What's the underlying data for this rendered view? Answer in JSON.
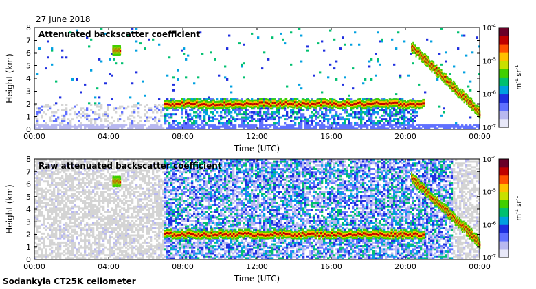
{
  "date_label": "27 June 2018",
  "footer": "Sodankyla CT25K ceilometer",
  "colors": {
    "colormap": [
      "#e8e8f8",
      "#b8b8f0",
      "#6070ff",
      "#1f2fe0",
      "#00a0e0",
      "#00c070",
      "#40d000",
      "#c8e000",
      "#ffc000",
      "#ff5000",
      "#c00000",
      "#6a0028"
    ],
    "background_noise": "#d4d4d4",
    "axis": "#000000"
  },
  "chart_data": [
    {
      "type": "heatmap",
      "title": "Attenuated backscatter coefficient",
      "xlabel": "Time (UTC)",
      "ylabel": "Height (km)",
      "x_ticks": [
        "00:00",
        "04:00",
        "08:00",
        "12:00",
        "16:00",
        "20:00",
        "00:00"
      ],
      "y_ticks": [
        "0",
        "1",
        "2",
        "3",
        "4",
        "5",
        "6",
        "7",
        "8"
      ],
      "xlim_hours": [
        0,
        24
      ],
      "ylim_km": [
        0,
        8
      ],
      "colorbar": {
        "scale": "log",
        "range": [
          1e-07,
          0.0001
        ],
        "tick_exponents": [
          "-7",
          "-6",
          "-5",
          "-4"
        ],
        "unit_base": "m",
        "unit_exp": "-1",
        "unit_sr": "sr",
        "unit_sr_exp": "-1"
      },
      "features": [
        {
          "name": "boundary layer cloud",
          "start_hour": 7.0,
          "end_hour": 21.0,
          "height_km": 2.0
        },
        {
          "name": "elevated layer early morning",
          "start_hour": 4.2,
          "end_hour": 4.6,
          "height_km": 6.2
        },
        {
          "name": "descending layer",
          "start_hour": 20.3,
          "end_hour": 24.0,
          "start_height_km": 6.5,
          "end_height_km": 1.3
        }
      ]
    },
    {
      "type": "heatmap",
      "title": "Raw attenuated backscatter coefficient",
      "xlabel": "Time (UTC)",
      "ylabel": "Height (km)",
      "x_ticks": [
        "00:00",
        "04:00",
        "08:00",
        "12:00",
        "16:00",
        "20:00",
        "00:00"
      ],
      "y_ticks": [
        "0",
        "1",
        "2",
        "3",
        "4",
        "5",
        "6",
        "7",
        "8"
      ],
      "xlim_hours": [
        0,
        24
      ],
      "ylim_km": [
        0,
        8
      ],
      "colorbar": {
        "scale": "log",
        "range": [
          1e-07,
          0.0001
        ],
        "tick_exponents": [
          "-7",
          "-6",
          "-5",
          "-4"
        ],
        "unit_base": "m",
        "unit_exp": "-1",
        "unit_sr": "sr",
        "unit_sr_exp": "-1"
      },
      "features": [
        {
          "name": "boundary layer cloud",
          "start_hour": 7.0,
          "end_hour": 21.0,
          "height_km": 2.0
        },
        {
          "name": "elevated layer early morning",
          "start_hour": 4.2,
          "end_hour": 4.6,
          "height_km": 6.2
        },
        {
          "name": "descending layer",
          "start_hour": 20.3,
          "end_hour": 24.0,
          "start_height_km": 6.5,
          "end_height_km": 1.3
        }
      ]
    }
  ]
}
